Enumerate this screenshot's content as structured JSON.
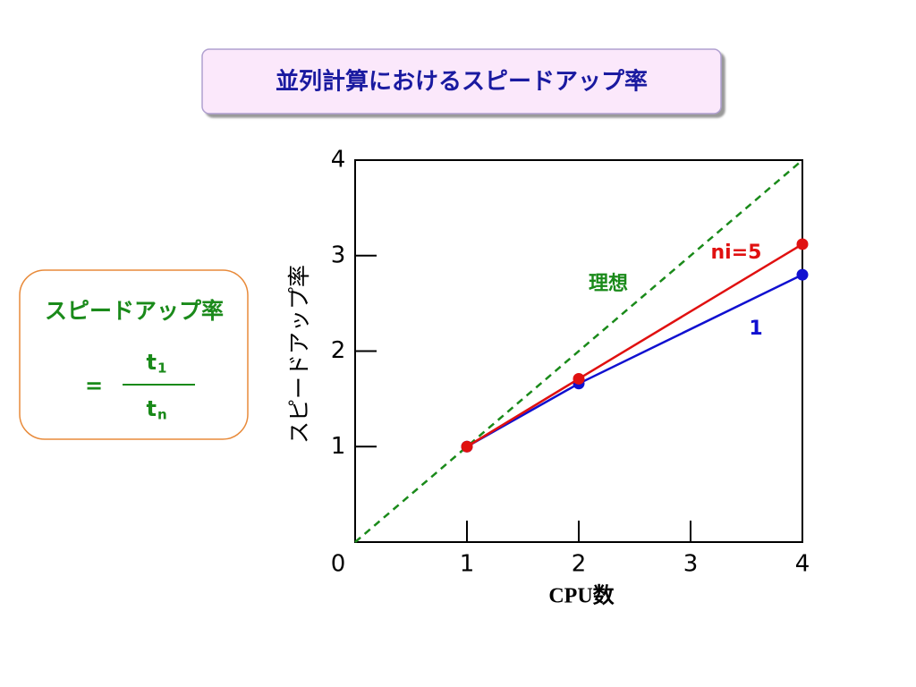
{
  "chart_data": {
    "type": "line",
    "title": "並列計算におけるスピードアップ率",
    "x_label": "CPU数",
    "y_label": "スピードアップ率",
    "xlim": [
      0,
      4
    ],
    "xticks": [
      0,
      1,
      2,
      3,
      4
    ],
    "ylim": [
      0,
      4
    ],
    "yticks": [
      1,
      2,
      3,
      4
    ],
    "series": [
      {
        "name": "理想",
        "color": "#1a8a1a",
        "dashed": true,
        "markers": false,
        "x": [
          0,
          4
        ],
        "values": [
          0,
          4
        ]
      },
      {
        "name": "1",
        "color": "#1010d0",
        "dashed": false,
        "markers": true,
        "x": [
          1,
          2,
          4
        ],
        "values": [
          1,
          1.66,
          2.8
        ]
      },
      {
        "name": "ni=5",
        "color": "#e01010",
        "dashed": false,
        "markers": true,
        "x": [
          1,
          2,
          4
        ],
        "values": [
          1,
          1.71,
          3.12
        ]
      }
    ]
  },
  "formula": {
    "label": "スピードアップ率",
    "equals": "=",
    "numerator": {
      "base": "t",
      "sub": "1"
    },
    "denominator": {
      "base": "t",
      "sub": "n"
    }
  }
}
